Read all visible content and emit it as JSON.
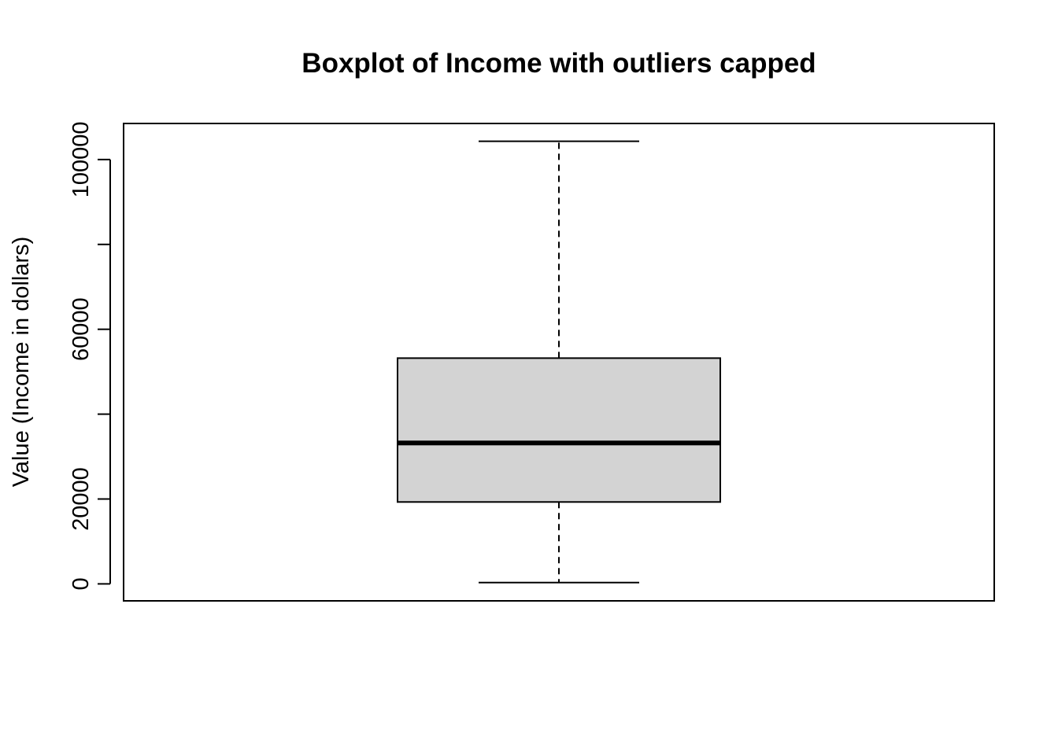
{
  "chart_data": {
    "type": "boxplot",
    "title": "Boxplot of Income with outliers capped",
    "xlabel": "",
    "ylabel": "Value (Income in dollars)",
    "ylim": [
      -4000,
      108500
    ],
    "y_ticks": [
      0,
      20000,
      40000,
      60000,
      80000,
      100000
    ],
    "y_tick_labels": [
      "0",
      "20000",
      "",
      "60000",
      "",
      "100000"
    ],
    "boxes": [
      {
        "min": 300,
        "q1": 19300,
        "median": 33200,
        "q3": 53200,
        "max": 104300
      }
    ],
    "colors": {
      "box_fill": "#d3d3d3",
      "line": "#000000"
    },
    "grid": false,
    "legend": "none"
  }
}
